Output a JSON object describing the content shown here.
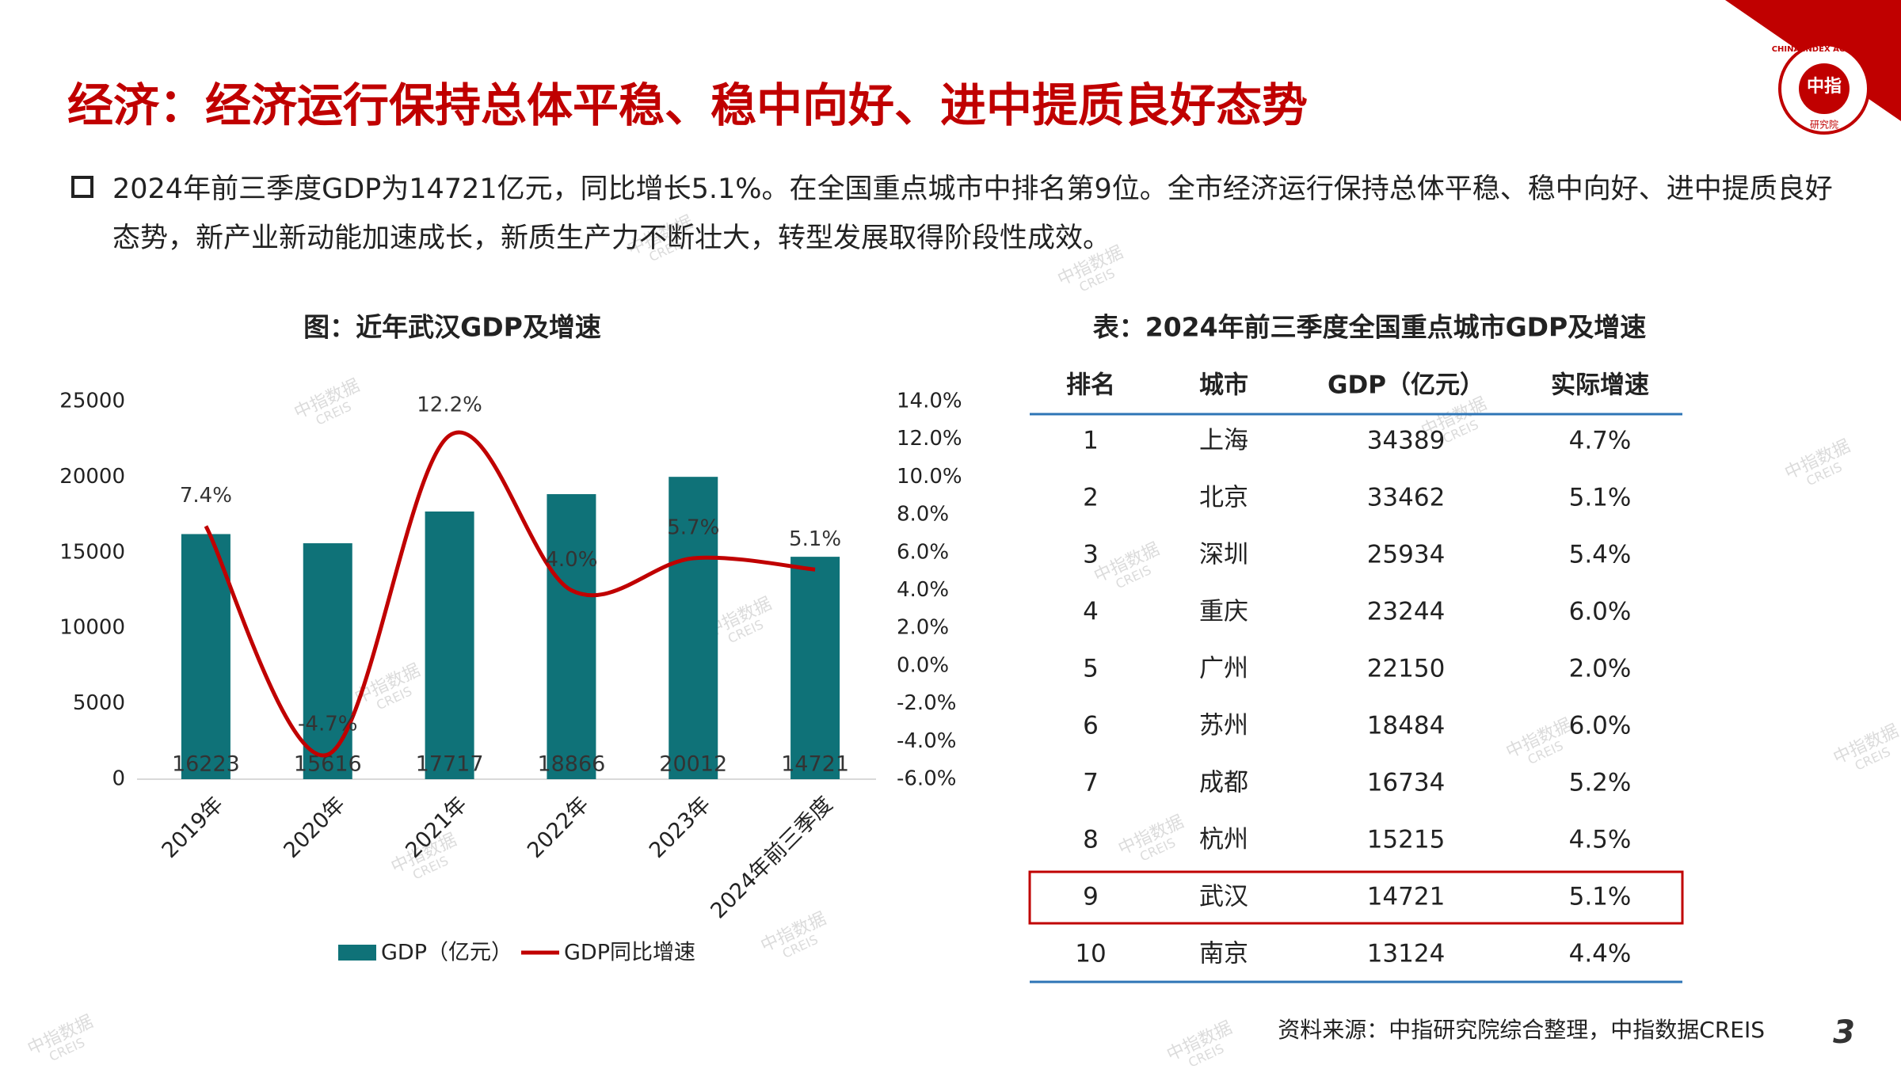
{
  "header": {
    "title": "经济：经济运行保持总体平稳、稳中向好、进中提质良好态势",
    "logo": {
      "ring": "CHINA INDEX ACADEMY",
      "center": "中指",
      "bottom": "研究院"
    }
  },
  "bullet": "2024年前三季度GDP为14721亿元，同比增长5.1%。在全国重点城市中排名第9位。全市经济运行保持总体平稳、稳中向好、进中提质良好态势，新产业新动能加速成长，新质生产力不断壮大，转型发展取得阶段性成效。",
  "chart_data": {
    "type": "bar",
    "title": "图：近年武汉GDP及增速",
    "categories": [
      "2019年",
      "2020年",
      "2021年",
      "2022年",
      "2023年",
      "2024年前三季度"
    ],
    "series": [
      {
        "name": "GDP（亿元）",
        "type": "bar",
        "color": "#0f7278",
        "values": [
          16223,
          15616,
          17717,
          18866,
          20012,
          14721
        ]
      },
      {
        "name": "GDP同比增速",
        "type": "line",
        "axis": "y2",
        "color": "#c00000",
        "values": [
          7.4,
          -4.7,
          12.2,
          4.0,
          5.7,
          5.1
        ],
        "value_labels": [
          "7.4%",
          "-4.7%",
          "12.2%",
          "4.0%",
          "5.7%",
          "5.1%"
        ]
      }
    ],
    "ylim": [
      0,
      25000
    ],
    "yticks": [
      0,
      5000,
      10000,
      15000,
      20000,
      25000
    ],
    "y2lim": [
      -6,
      14
    ],
    "y2ticks": [
      {
        "value": -6,
        "label": "-6.0%"
      },
      {
        "value": -4,
        "label": "-4.0%"
      },
      {
        "value": -2,
        "label": "-2.0%"
      },
      {
        "value": 0,
        "label": "0.0%"
      },
      {
        "value": 2,
        "label": "2.0%"
      },
      {
        "value": 4,
        "label": "4.0%"
      },
      {
        "value": 6,
        "label": "6.0%"
      },
      {
        "value": 8,
        "label": "8.0%"
      },
      {
        "value": 10,
        "label": "10.0%"
      },
      {
        "value": 12,
        "label": "12.0%"
      },
      {
        "value": 14,
        "label": "14.0%"
      }
    ],
    "grid": false,
    "legend": "bottom"
  },
  "table": {
    "title": "表：2024年前三季度全国重点城市GDP及增速",
    "columns": [
      "排名",
      "城市",
      "GDP（亿元）",
      "实际增速"
    ],
    "rows": [
      [
        "1",
        "上海",
        "34389",
        "4.7%"
      ],
      [
        "2",
        "北京",
        "33462",
        "5.1%"
      ],
      [
        "3",
        "深圳",
        "25934",
        "5.4%"
      ],
      [
        "4",
        "重庆",
        "23244",
        "6.0%"
      ],
      [
        "5",
        "广州",
        "22150",
        "2.0%"
      ],
      [
        "6",
        "苏州",
        "18484",
        "6.0%"
      ],
      [
        "7",
        "成都",
        "16734",
        "5.2%"
      ],
      [
        "8",
        "杭州",
        "15215",
        "4.5%"
      ],
      [
        "9",
        "武汉",
        "14721",
        "5.1%"
      ],
      [
        "10",
        "南京",
        "13124",
        "4.4%"
      ]
    ]
  },
  "source": "资料来源：中指研究院综合整理，中指数据CREIS",
  "page_number": "3",
  "watermark": {
    "cn": "中指数据",
    "en": "CREIS"
  }
}
